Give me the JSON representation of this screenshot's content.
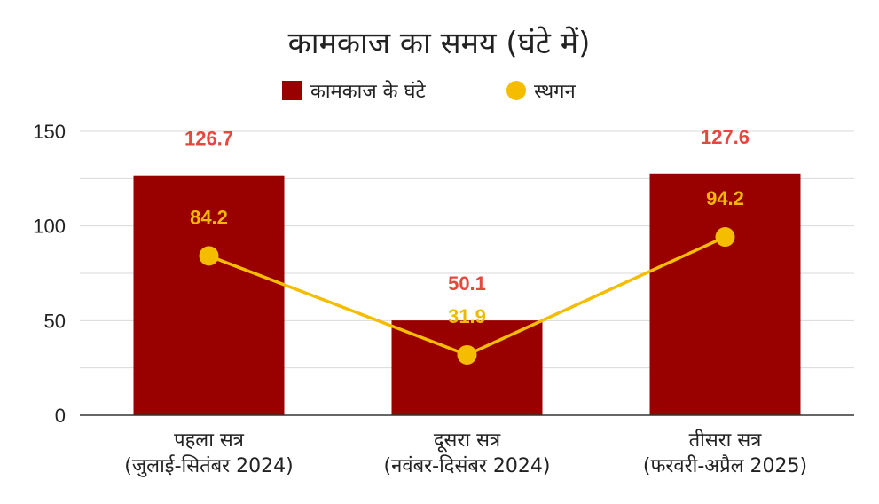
{
  "chart_data": {
    "type": "bar",
    "title": "कामकाज का समय (घंटे में)",
    "categories": [
      [
        "पहला सत्र",
        "(जुलाई-सितंबर 2024)"
      ],
      [
        "दूसरा सत्र",
        "(नवंबर-दिसंबर 2024)"
      ],
      [
        "तीसरा सत्र",
        "(फरवरी-अप्रैल 2025)"
      ]
    ],
    "series": [
      {
        "name": "कामकाज के घंटे",
        "type": "bar",
        "color": "#990000",
        "label_color": "#e8473e",
        "values": [
          126.7,
          50.1,
          127.6
        ]
      },
      {
        "name": "स्थगन",
        "type": "line",
        "color": "#f5bd00",
        "label_color": "#f0b800",
        "values": [
          84.2,
          31.9,
          94.2
        ]
      }
    ],
    "ylim": [
      0,
      150
    ],
    "yticks": [
      0,
      50,
      100,
      150
    ],
    "grid": true,
    "legend": "top-center"
  }
}
